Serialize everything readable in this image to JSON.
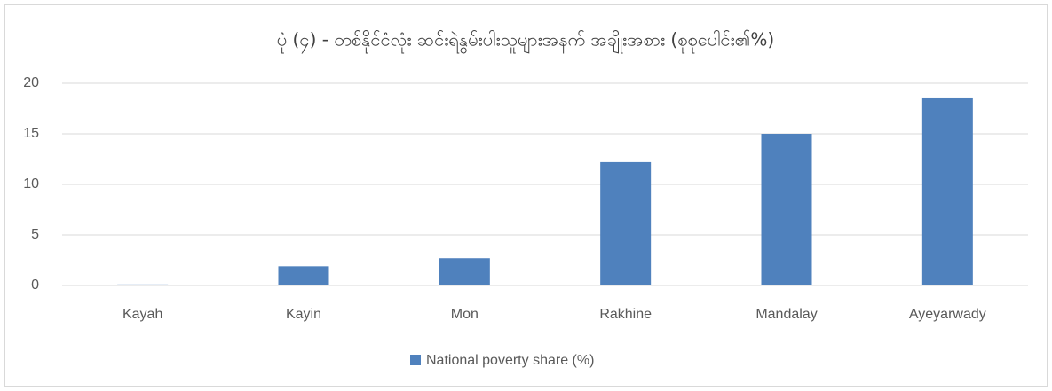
{
  "chart_data": {
    "type": "bar",
    "title": "ပုံ (၄) - တစ်နိုင်ငံလုံး ဆင်းရဲနွမ်းပါးသူများအနက် အချိုးအစား (စုစုပေါင်း၏%)",
    "categories": [
      "Kayah",
      "Kayin",
      "Mon",
      "Rakhine",
      "Mandalay",
      "Ayeyarwady"
    ],
    "series": [
      {
        "name": "National poverty share (%)",
        "color": "#4f81bd",
        "values": [
          0.1,
          1.9,
          2.7,
          12.2,
          15.0,
          18.6
        ]
      }
    ],
    "ylim": [
      0,
      20
    ],
    "yticks": [
      0,
      5,
      10,
      15,
      20
    ],
    "grid": true,
    "legend": "bottom"
  }
}
